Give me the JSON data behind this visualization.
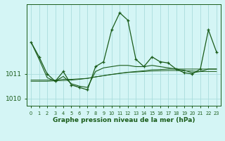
{
  "title": "Graphe pression niveau de la mer (hPa)",
  "background_color": "#d4f5f5",
  "line_color": "#1a5c1a",
  "grid_color": "#aadddd",
  "x_labels": [
    "0",
    "1",
    "2",
    "3",
    "4",
    "5",
    "6",
    "7",
    "8",
    "9",
    "10",
    "11",
    "12",
    "13",
    "14",
    "15",
    "16",
    "17",
    "18",
    "19",
    "20",
    "21",
    "22",
    "23"
  ],
  "x_values": [
    0,
    1,
    2,
    3,
    4,
    5,
    6,
    7,
    8,
    9,
    10,
    11,
    12,
    13,
    14,
    15,
    16,
    17,
    18,
    19,
    20,
    21,
    22,
    23
  ],
  "y_main": [
    1012.3,
    1011.7,
    1011.0,
    1010.7,
    1011.1,
    1010.55,
    1010.45,
    1010.35,
    1011.3,
    1011.5,
    1012.8,
    1013.5,
    1013.2,
    1011.6,
    1011.3,
    1011.7,
    1011.5,
    1011.45,
    1011.2,
    1011.05,
    1011.0,
    1011.2,
    1012.8,
    1011.9
  ],
  "y_line2": [
    1012.3,
    1011.6,
    1010.85,
    1010.7,
    1010.9,
    1010.6,
    1010.5,
    1010.45,
    1011.1,
    1011.25,
    1011.3,
    1011.35,
    1011.35,
    1011.3,
    1011.3,
    1011.35,
    1011.3,
    1011.25,
    1011.2,
    1011.15,
    1011.05,
    1011.1,
    1011.2,
    1011.2
  ],
  "y_line3": [
    1010.75,
    1010.75,
    1010.75,
    1010.75,
    1010.78,
    1010.78,
    1010.8,
    1010.82,
    1010.88,
    1010.93,
    1010.98,
    1011.03,
    1011.07,
    1011.1,
    1011.13,
    1011.17,
    1011.18,
    1011.2,
    1011.2,
    1011.2,
    1011.2,
    1011.2,
    1011.2,
    1011.2
  ],
  "y_line4": [
    1010.7,
    1010.7,
    1010.7,
    1010.72,
    1010.73,
    1010.75,
    1010.78,
    1010.82,
    1010.88,
    1010.93,
    1010.98,
    1011.02,
    1011.06,
    1011.08,
    1011.1,
    1011.12,
    1011.13,
    1011.14,
    1011.14,
    1011.13,
    1011.12,
    1011.1,
    1011.1,
    1011.1
  ],
  "ylim": [
    1009.7,
    1013.85
  ],
  "yticks": [
    1010,
    1011
  ],
  "ytick_labels": [
    "1010",
    "1011"
  ],
  "xlim": [
    -0.5,
    23.5
  ]
}
